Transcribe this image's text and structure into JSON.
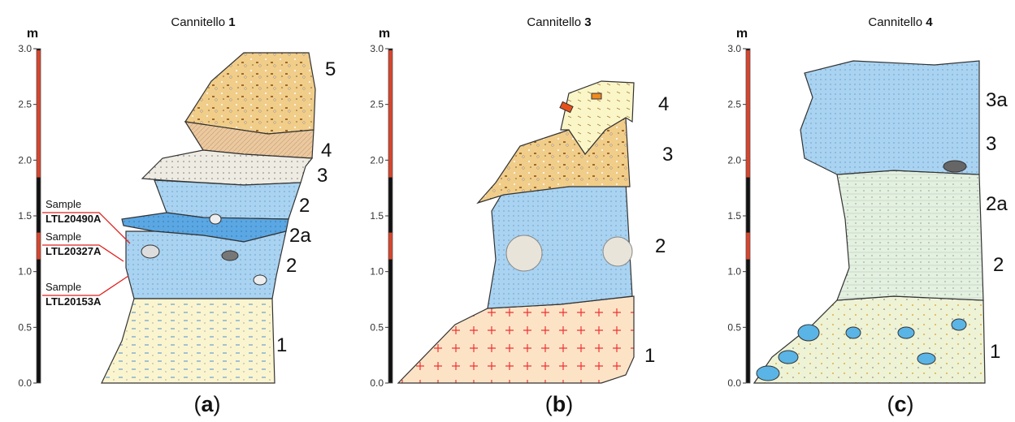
{
  "panels": [
    {
      "title": {
        "name": "Cannitello",
        "number": "1"
      },
      "unit": "m",
      "ticks": [
        "0.0",
        "0.5",
        "1.0",
        "1.5",
        "2.0",
        "2.5",
        "3.0"
      ],
      "layers": [
        "5",
        "4",
        "3",
        "2",
        "2a",
        "2",
        "1"
      ],
      "samples": [
        {
          "label": "Sample",
          "id": "LTL20490A"
        },
        {
          "label": "Sample",
          "id": "LTL20327A"
        },
        {
          "label": "Sample",
          "id": "LTL20153A"
        }
      ],
      "letter": {
        "open": "(",
        "mark": "a",
        "close": ")"
      }
    },
    {
      "title": {
        "name": "Cannitello",
        "number": "3"
      },
      "unit": "m",
      "ticks": [
        "0.0",
        "0.5",
        "1.0",
        "1.5",
        "2.0",
        "2.5",
        "3.0"
      ],
      "layers": [
        "4",
        "3",
        "2",
        "1"
      ],
      "letter": {
        "open": "(",
        "mark": "b",
        "close": ")"
      }
    },
    {
      "title": {
        "name": "Cannitello",
        "number": "4"
      },
      "unit": "m",
      "ticks": [
        "0.0",
        "0.5",
        "1.0",
        "1.5",
        "2.0",
        "2.5",
        "3.0"
      ],
      "layers": [
        "3a",
        "3",
        "2a",
        "2",
        "1"
      ],
      "letter": {
        "open": "(",
        "mark": "c",
        "close": ")"
      }
    }
  ]
}
